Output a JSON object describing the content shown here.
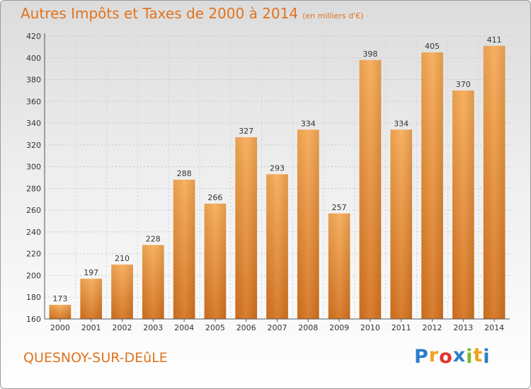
{
  "title": "Autres Impôts et Taxes de 2000 à 2014",
  "unit": "(en milliers d'€)",
  "commune": "QUESNOY-SUR-DEûLE",
  "brand": {
    "letters": [
      "P",
      "r",
      "o",
      "x",
      "i",
      "t",
      "i"
    ],
    "colors": [
      "#2a7fc9",
      "#f3a21c",
      "#e4322b",
      "#2a7fc9",
      "#7ab929",
      "#f3a21c",
      "#2a7fc9"
    ]
  },
  "colors": {
    "bar_top": "#f7aa55",
    "bar_bottom": "#d5721e",
    "title": "#e0731e"
  },
  "chart_data": {
    "type": "bar",
    "title": "Autres Impôts et Taxes de 2000 à 2014",
    "categories": [
      "2000",
      "2001",
      "2002",
      "2003",
      "2004",
      "2005",
      "2006",
      "2007",
      "2008",
      "2009",
      "2010",
      "2011",
      "2012",
      "2013",
      "2014"
    ],
    "values": [
      173,
      197,
      210,
      228,
      288,
      266,
      327,
      293,
      334,
      257,
      398,
      334,
      405,
      370,
      411
    ],
    "ylim": [
      160,
      420
    ],
    "yticks": [
      160,
      180,
      200,
      220,
      240,
      260,
      280,
      300,
      320,
      340,
      360,
      380,
      400,
      420
    ],
    "grid": true,
    "legend": "none"
  }
}
